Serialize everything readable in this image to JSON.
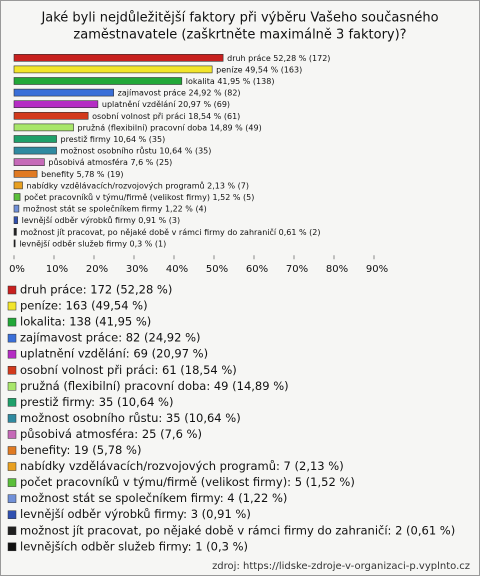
{
  "chart_data": {
    "type": "bar",
    "orientation": "horizontal",
    "title": [
      "Jaké byli nejdůležitější faktory při výběru Vašeho současného",
      "zaměstnavatele (zaškrtněte maximálně 3 faktory)?"
    ],
    "categories": [
      "druh práce",
      "peníze",
      "lokalita",
      "zajímavost práce",
      "uplatnění vzdělání",
      "osobní volnost při práci",
      "pružná (flexibilní) pracovní doba",
      "prestiž firmy",
      "možnost osobního růstu",
      "působivá atmosféra",
      "benefity",
      "nabídky vzdělávacích/rozvojových programů",
      "počet pracovníků v týmu/firmě (velikost firmy)",
      "možnost stát se společníkem firmy",
      "levnější odběr výrobků firmy",
      "možnost jít pracovat, po nějaké době v rámci firmy do zahraničí",
      "levnější odběr služeb firmy"
    ],
    "values": [
      52.28,
      49.54,
      41.95,
      24.92,
      20.97,
      18.54,
      14.89,
      10.64,
      10.64,
      7.6,
      5.78,
      2.13,
      1.52,
      1.22,
      0.91,
      0.61,
      0.3
    ],
    "value_labels": [
      "52,28 % (172)",
      "49,54 % (163)",
      "41,95 % (138)",
      "24,92 % (82)",
      "20,97 % (69)",
      "18,54 % (61)",
      "14,89 % (49)",
      "10,64 % (35)",
      "10,64 % (35)",
      "7,6 % (25)",
      "5,78 % (19)",
      "2,13 % (7)",
      "1,52 % (5)",
      "1,22 % (4)",
      "0,91 % (3)",
      "0,61 % (2)",
      "0,3 % (1)"
    ],
    "colors": [
      "#c8201e",
      "#f2e52a",
      "#22a838",
      "#3a6fd8",
      "#b52dc4",
      "#d23a1c",
      "#a8e66a",
      "#1fa06a",
      "#2f8aa0",
      "#c66ab8",
      "#e07a22",
      "#e8a020",
      "#5bbf3a",
      "#7090d8",
      "#3050b0",
      "#202020",
      "#101010"
    ],
    "legend": [
      "druh práce: 172 (52,28 %)",
      "peníze: 163 (49,54 %)",
      "lokalita: 138 (41,95 %)",
      "zajímavost práce: 82 (24,92 %)",
      "uplatnění vzdělání: 69 (20,97 %)",
      "osobní volnost při práci: 61 (18,54 %)",
      "pružná (flexibilní) pracovní doba: 49 (14,89 %)",
      "prestiž firmy: 35 (10,64 %)",
      "možnost osobního růstu: 35 (10,64 %)",
      "působivá atmosféra: 25 (7,6 %)",
      "benefity: 19 (5,78 %)",
      "nabídky vzdělávacích/rozvojových programů: 7 (2,13 %)",
      "počet pracovníků v týmu/firmě (velikost firmy): 5 (1,52 %)",
      "možnost stát se společníkem firmy: 4 (1,22 %)",
      "levnější odběr výrobků firmy: 3 (0,91 %)",
      "možnost jít pracovat, po nějaké době v rámci firmy do zahraničí: 2 (0,61 %)",
      "levnějších odběr služeb firmy: 1 (0,3 %)"
    ],
    "xlim": [
      0,
      100
    ],
    "xticks": [
      {
        "value": 0,
        "label": "0%"
      },
      {
        "value": 10,
        "label": "10%"
      },
      {
        "value": 20,
        "label": "20%"
      },
      {
        "value": 30,
        "label": "30%"
      },
      {
        "value": 40,
        "label": "40%"
      },
      {
        "value": 50,
        "label": "50%"
      },
      {
        "value": 60,
        "label": "60%"
      },
      {
        "value": 70,
        "label": "70%"
      },
      {
        "value": 80,
        "label": "80%"
      },
      {
        "value": 90,
        "label": "90%"
      }
    ],
    "source": "zdroj: https://lidske-zdroje-v-organizaci-p.vyplnto.cz"
  }
}
